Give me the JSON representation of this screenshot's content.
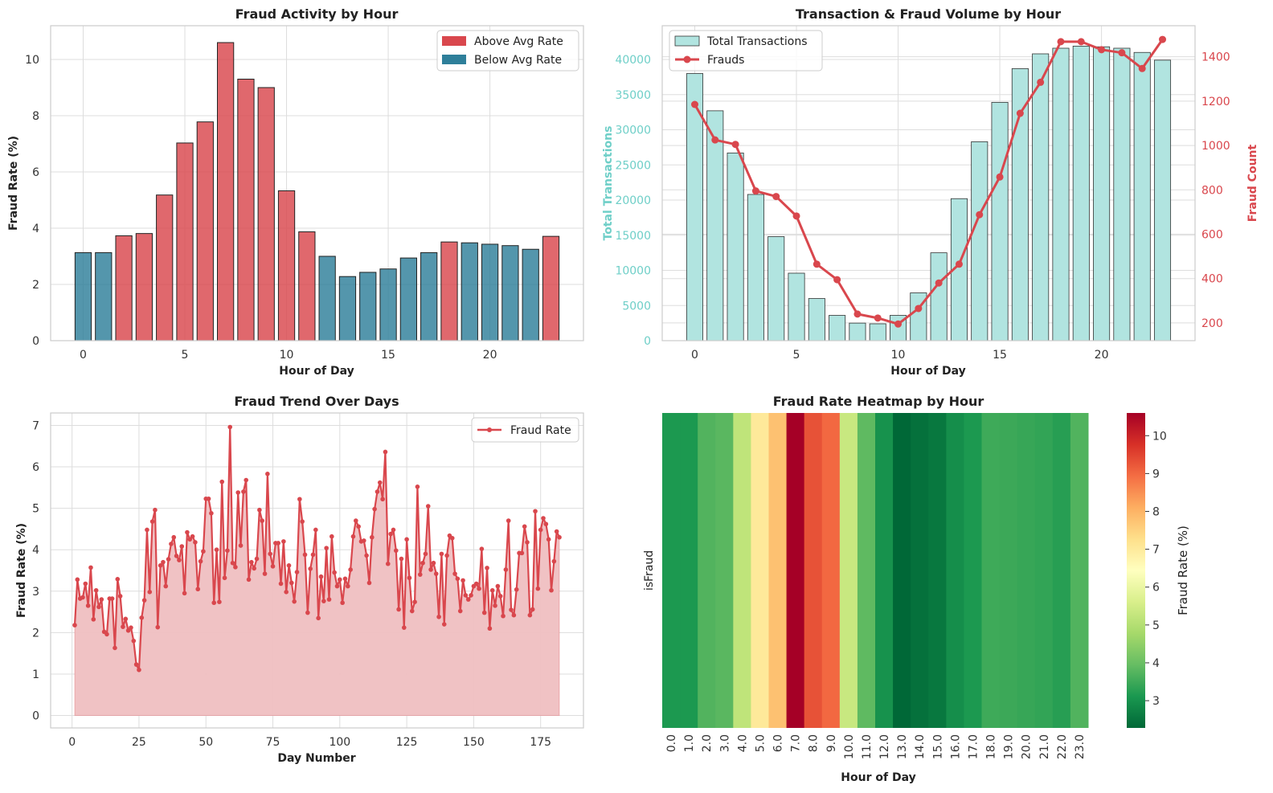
{
  "colors": {
    "above": "#d9474d",
    "below": "#2e7f9a",
    "teal_bar": "#b1e4e0",
    "teal_text": "#6fcfc8",
    "red": "#d9474d",
    "fill": "#efbfc1"
  },
  "chart_data": [
    {
      "type": "bar",
      "title": "Fraud Activity by Hour",
      "xlabel": "Hour of Day",
      "ylabel": "Fraud Rate (%)",
      "xlim": [
        -1.6,
        24.6
      ],
      "ylim": [
        0,
        11.2
      ],
      "xticks": [
        "0",
        "5",
        "10",
        "15",
        "20"
      ],
      "yticks": [
        "0",
        "2",
        "4",
        "6",
        "8",
        "10"
      ],
      "legend": [
        "Above Avg Rate",
        "Below Avg Rate"
      ],
      "categories": [
        0,
        1,
        2,
        3,
        4,
        5,
        6,
        7,
        8,
        9,
        10,
        11,
        12,
        13,
        14,
        15,
        16,
        17,
        18,
        19,
        20,
        21,
        22,
        23
      ],
      "values": [
        3.13,
        3.13,
        3.73,
        3.81,
        5.18,
        7.03,
        7.78,
        10.6,
        9.3,
        9.0,
        5.33,
        3.87,
        3.0,
        2.28,
        2.43,
        2.55,
        2.94,
        3.13,
        3.51,
        3.48,
        3.43,
        3.38,
        3.25,
        3.71
      ],
      "above_avg": [
        false,
        false,
        true,
        true,
        true,
        true,
        true,
        true,
        true,
        true,
        true,
        true,
        false,
        false,
        false,
        false,
        false,
        false,
        true,
        false,
        false,
        false,
        false,
        true
      ]
    },
    {
      "type": "bar",
      "title": "Transaction & Fraud Volume by Hour",
      "xlabel": "Hour of Day",
      "ylabel": "Total Transactions",
      "ylabel2": "Fraud Count",
      "xlim": [
        -1.6,
        24.6
      ],
      "ylim": [
        0,
        44800
      ],
      "ylim2": [
        120,
        1540
      ],
      "xticks": [
        "0",
        "5",
        "10",
        "15",
        "20"
      ],
      "yticks": [
        "0",
        "5000",
        "10000",
        "15000",
        "20000",
        "25000",
        "30000",
        "35000",
        "40000"
      ],
      "yticks2": [
        "200",
        "400",
        "600",
        "800",
        "1000",
        "1200",
        "1400"
      ],
      "legend": [
        "Total Transactions",
        "Frauds"
      ],
      "categories": [
        0,
        1,
        2,
        3,
        4,
        5,
        6,
        7,
        8,
        9,
        10,
        11,
        12,
        13,
        14,
        15,
        16,
        17,
        18,
        19,
        20,
        21,
        22,
        23
      ],
      "series": [
        {
          "name": "Total Transactions",
          "values": [
            38000,
            32700,
            26700,
            20800,
            14800,
            9600,
            6000,
            3600,
            2500,
            2400,
            3600,
            6800,
            12500,
            20200,
            28300,
            33900,
            38700,
            40800,
            41600,
            41900,
            41800,
            41600,
            41000,
            39900
          ]
        },
        {
          "name": "Frauds",
          "values": [
            1185,
            1025,
            1005,
            795,
            770,
            682,
            465,
            395,
            240,
            222,
            195,
            265,
            380,
            465,
            688,
            858,
            1145,
            1285,
            1468,
            1468,
            1432,
            1418,
            1347,
            1478
          ]
        }
      ]
    },
    {
      "type": "area",
      "title": "Fraud Trend Over Days",
      "xlabel": "Day Number",
      "ylabel": "Fraud Rate (%)",
      "xlim": [
        -8,
        191
      ],
      "ylim": [
        -0.3,
        7.3
      ],
      "xticks": [
        "0",
        "25",
        "50",
        "75",
        "100",
        "125",
        "150",
        "175"
      ],
      "yticks": [
        "0",
        "1",
        "2",
        "3",
        "4",
        "5",
        "6",
        "7"
      ],
      "legend": [
        "Fraud Rate"
      ],
      "x_start": 1,
      "values": [
        2.18,
        3.28,
        2.82,
        2.85,
        3.18,
        2.65,
        3.57,
        2.32,
        3.02,
        2.62,
        2.8,
        2.02,
        1.96,
        2.82,
        2.82,
        1.63,
        3.29,
        2.88,
        2.14,
        2.33,
        2.05,
        2.12,
        1.8,
        1.23,
        1.1,
        2.36,
        2.78,
        4.48,
        2.98,
        4.68,
        4.96,
        2.13,
        3.62,
        3.7,
        3.12,
        3.77,
        4.14,
        4.3,
        3.85,
        3.75,
        4.08,
        2.95,
        4.42,
        4.25,
        4.32,
        4.18,
        3.05,
        3.72,
        3.96,
        5.23,
        5.23,
        4.88,
        2.72,
        4.0,
        2.74,
        5.64,
        3.32,
        3.98,
        6.96,
        3.68,
        3.58,
        5.38,
        4.1,
        5.4,
        5.68,
        3.28,
        3.7,
        3.55,
        3.78,
        4.96,
        4.7,
        3.42,
        5.83,
        3.9,
        3.6,
        4.16,
        4.16,
        3.18,
        4.2,
        2.98,
        3.62,
        3.2,
        2.75,
        3.46,
        5.22,
        4.68,
        3.88,
        2.48,
        3.54,
        3.88,
        4.48,
        2.35,
        3.35,
        2.76,
        4.04,
        2.8,
        4.32,
        3.45,
        3.12,
        3.28,
        2.72,
        3.3,
        3.12,
        3.52,
        4.32,
        4.7,
        4.56,
        4.2,
        4.22,
        3.86,
        3.2,
        4.3,
        4.98,
        5.4,
        5.62,
        5.22,
        6.36,
        3.66,
        4.38,
        4.48,
        3.98,
        2.56,
        3.78,
        2.12,
        4.25,
        3.32,
        2.52,
        2.74,
        5.52,
        3.4,
        3.68,
        3.9,
        5.05,
        3.52,
        3.68,
        3.42,
        2.38,
        3.9,
        2.2,
        3.86,
        4.34,
        4.28,
        3.42,
        3.3,
        2.52,
        3.26,
        2.9,
        2.8,
        2.9,
        3.12,
        3.18,
        3.06,
        4.02,
        2.48,
        3.56,
        2.1,
        3.02,
        2.65,
        3.12,
        2.88,
        2.4,
        3.52,
        4.7,
        2.55,
        2.42,
        3.04,
        3.92,
        3.92,
        4.56,
        4.18,
        2.42,
        2.56,
        4.93,
        3.06,
        4.48,
        4.76,
        4.62,
        4.25,
        3.02,
        3.72,
        4.44,
        4.3
      ]
    },
    {
      "type": "heatmap",
      "title": "Fraud Rate Heatmap by Hour",
      "xlabel": "Hour of Day",
      "ylabel": "isFraud",
      "colorbar_label": "Fraud Rate (%)",
      "colorbar_range": [
        2.28,
        10.6
      ],
      "colorbar_ticks": [
        "3",
        "4",
        "5",
        "6",
        "7",
        "8",
        "9",
        "10"
      ],
      "categories": [
        "0.0",
        "1.0",
        "2.0",
        "3.0",
        "4.0",
        "5.0",
        "6.0",
        "7.0",
        "8.0",
        "9.0",
        "10.0",
        "11.0",
        "12.0",
        "13.0",
        "14.0",
        "15.0",
        "16.0",
        "17.0",
        "18.0",
        "19.0",
        "20.0",
        "21.0",
        "22.0",
        "23.0"
      ],
      "values": [
        3.13,
        3.13,
        3.73,
        3.81,
        5.18,
        7.03,
        7.78,
        10.6,
        9.3,
        9.0,
        5.33,
        3.87,
        3.0,
        2.28,
        2.43,
        2.55,
        2.94,
        3.13,
        3.51,
        3.48,
        3.43,
        3.38,
        3.25,
        3.71
      ]
    }
  ]
}
